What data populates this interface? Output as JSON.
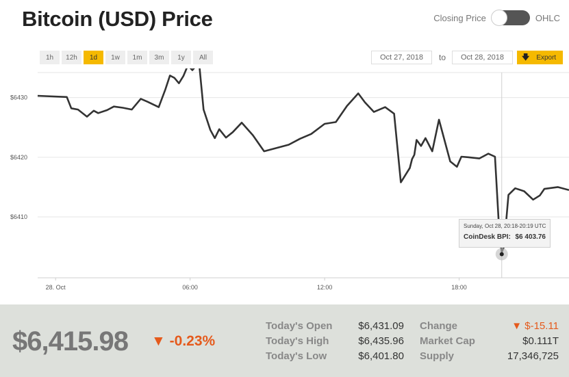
{
  "header": {
    "title": "Bitcoin (USD) Price",
    "toggle_left": "Closing Price",
    "toggle_right": "OHLC"
  },
  "ranges": [
    {
      "label": "1h",
      "active": false
    },
    {
      "label": "12h",
      "active": false
    },
    {
      "label": "1d",
      "active": true
    },
    {
      "label": "1w",
      "active": false
    },
    {
      "label": "1m",
      "active": false
    },
    {
      "label": "3m",
      "active": false
    },
    {
      "label": "1y",
      "active": false
    },
    {
      "label": "All",
      "active": false
    }
  ],
  "date_range": {
    "from": "Oct 27, 2018",
    "to_label": "to",
    "to": "Oct 28, 2018"
  },
  "export_label": "Export",
  "colors": {
    "accent": "#f5b900",
    "negative": "#e55a1c",
    "line": "#333333"
  },
  "chart_data": {
    "type": "line",
    "y_tick_labels": [
      "$6430",
      "$6420",
      "$6410"
    ],
    "y_ticks": [
      6430,
      6420,
      6410
    ],
    "x_tick_labels": [
      "28. Oct",
      "06:00",
      "12:00",
      "18:00"
    ],
    "x_ticks": [
      0,
      6,
      12,
      18
    ],
    "xlim": [
      -0.8,
      22.9
    ],
    "ylim": [
      6399.8,
      6434.2
    ],
    "grid": true,
    "legend": "none",
    "series": [
      {
        "x": [
          -0.8,
          0.5,
          0.7,
          1.0,
          1.4,
          1.7,
          1.9,
          2.3,
          2.6,
          3.0,
          3.4,
          3.8,
          4.1,
          4.6,
          4.9,
          5.1,
          5.3,
          5.5,
          5.7,
          5.9,
          6.1,
          6.4,
          6.6,
          6.9,
          7.1,
          7.3,
          7.6,
          7.9,
          8.3,
          8.8,
          9.3,
          9.8,
          10.1,
          10.4,
          10.9,
          11.4,
          12.0,
          12.5,
          13.0,
          13.5,
          13.8,
          14.2,
          14.7,
          15.1,
          15.4,
          15.8,
          15.9,
          16.0,
          16.1,
          16.3,
          16.5,
          16.8,
          17.1,
          17.6,
          17.9,
          18.1,
          18.4,
          18.9,
          19.3,
          19.6,
          19.8,
          19.9,
          20.0,
          20.2,
          20.5,
          20.9,
          21.3,
          21.6,
          21.8,
          22.0,
          22.4,
          22.9
        ],
        "y": [
          6430.3,
          6430.1,
          6428.2,
          6428.0,
          6426.8,
          6427.8,
          6427.4,
          6427.9,
          6428.5,
          6428.3,
          6428.0,
          6429.8,
          6429.3,
          6428.4,
          6431.4,
          6433.7,
          6433.3,
          6432.4,
          6433.6,
          6435.4,
          6434.6,
          6435.9,
          6428.0,
          6424.6,
          6423.2,
          6424.7,
          6423.3,
          6424.2,
          6425.8,
          6423.7,
          6421.0,
          6421.5,
          6421.8,
          6422.1,
          6423.1,
          6423.9,
          6425.6,
          6425.9,
          6428.6,
          6430.7,
          6429.2,
          6427.6,
          6428.4,
          6427.3,
          6415.8,
          6418.2,
          6419.7,
          6420.4,
          6422.9,
          6421.9,
          6423.2,
          6421.0,
          6426.3,
          6419.3,
          6418.4,
          6420.1,
          6420.0,
          6419.8,
          6420.6,
          6420.1,
          6406.8,
          6404.1,
          6405.0,
          6413.7,
          6414.8,
          6414.3,
          6412.9,
          6413.6,
          6414.7,
          6414.8,
          6415.0,
          6414.5
        ]
      }
    ],
    "crosshair_x": 19.9,
    "crosshair_y": 6403.76
  },
  "tooltip": {
    "time": "Sunday, Oct 28, 20:18-20:19 UTC",
    "label": "CoinDesk BPI:",
    "value": "$6 403.76"
  },
  "footer": {
    "price": "$6,415.98",
    "pct": "-0.23%",
    "open_label": "Today's Open",
    "open_value": "$6,431.09",
    "high_label": "Today's High",
    "high_value": "$6,435.96",
    "low_label": "Today's Low",
    "low_value": "$6,401.80",
    "change_label": "Change",
    "change_value": "$-15.11",
    "cap_label": "Market Cap",
    "cap_value": "$0.111T",
    "supply_label": "Supply",
    "supply_value": "17,346,725"
  }
}
